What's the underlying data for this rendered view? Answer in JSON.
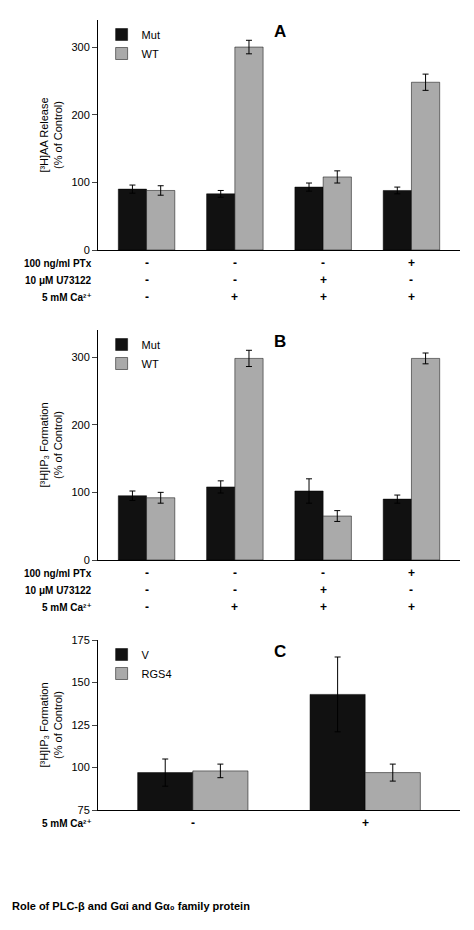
{
  "chart_data": [
    {
      "type": "bar",
      "title": "A",
      "ylabel": "[³H]AA Release\n(% of Control)",
      "categories": [
        "-\n-\n-",
        "-\n-\n+",
        "-\n+\n+",
        "+\n-\n+"
      ],
      "annotations": [
        "100 ng/ml PTx",
        "10 μM U73122",
        "5 mM Ca²⁺"
      ],
      "series": [
        {
          "name": "Mut",
          "color": "#111111",
          "values": [
            90,
            83,
            93,
            88
          ],
          "error": [
            6,
            5,
            6,
            5
          ]
        },
        {
          "name": "WT",
          "color": "#aaaaaa",
          "values": [
            88,
            300,
            108,
            248
          ],
          "error": [
            7,
            10,
            9,
            12
          ]
        }
      ],
      "ylim": [
        0,
        340
      ],
      "yticks": [
        0,
        100,
        200,
        300
      ],
      "grid": false,
      "legend": "upper left"
    },
    {
      "type": "bar",
      "title": "B",
      "ylabel": "[³H]IP₃ Formation\n(% of Control)",
      "categories": [
        "-\n-\n-",
        "-\n-\n+",
        "-\n+\n+",
        "+\n-\n+"
      ],
      "annotations": [
        "100 ng/ml PTx",
        "10 μM U73122",
        "5 mM Ca²⁺"
      ],
      "series": [
        {
          "name": "Mut",
          "color": "#111111",
          "values": [
            95,
            108,
            102,
            90
          ],
          "error": [
            7,
            9,
            18,
            6
          ]
        },
        {
          "name": "WT",
          "color": "#aaaaaa",
          "values": [
            92,
            298,
            65,
            298
          ],
          "error": [
            8,
            12,
            8,
            8
          ]
        }
      ],
      "ylim": [
        0,
        340
      ],
      "yticks": [
        0,
        100,
        200,
        300
      ],
      "grid": false,
      "legend": "upper left"
    },
    {
      "type": "bar",
      "title": "C",
      "ylabel": "[³H]IP₃ Formation\n(% of Control)",
      "categories": [
        "-",
        "+"
      ],
      "annotations": [
        "5 mM Ca²⁺",
        "Role of PLC-β and Gαi and Gα₀ family protein"
      ],
      "series": [
        {
          "name": "V",
          "color": "#111111",
          "values": [
            97,
            143
          ],
          "error": [
            8,
            22
          ]
        },
        {
          "name": "RGS4",
          "color": "#aaaaaa",
          "values": [
            98,
            97
          ],
          "error": [
            4,
            5
          ]
        }
      ],
      "ylim": [
        75,
        175
      ],
      "yticks": [
        75,
        100,
        125,
        150,
        175
      ],
      "grid": false,
      "legend": "upper left"
    }
  ]
}
